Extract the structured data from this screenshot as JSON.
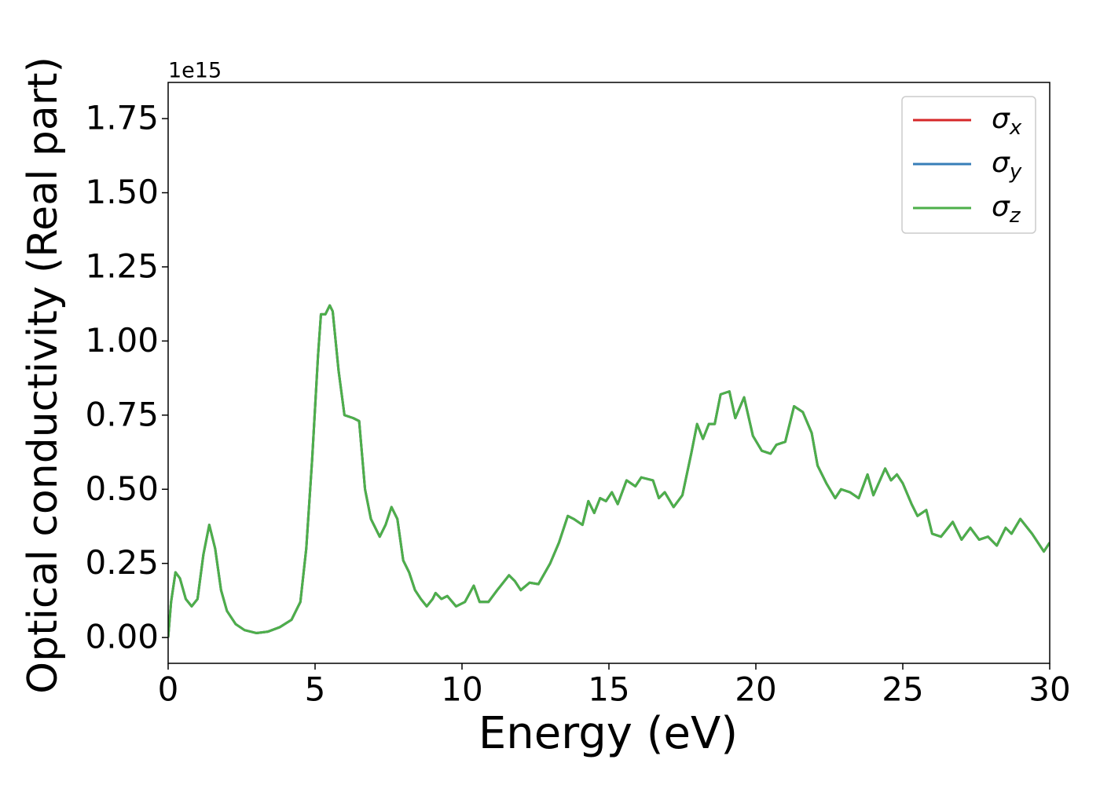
{
  "chart_data": {
    "type": "line",
    "xlabel": "Energy (eV)",
    "ylabel": "Optical conductivity (Real part)",
    "offset_label": "1e15",
    "xlim": [
      0,
      30
    ],
    "xticks": [
      0,
      5,
      10,
      15,
      20,
      25,
      30
    ],
    "ylim": [
      -0.087,
      1.872
    ],
    "yticks": [
      {
        "value": 0,
        "label": "0.00"
      },
      0.25,
      {
        "value": 0.5,
        "label": "0.50"
      },
      0.75,
      {
        "value": 1,
        "label": "1.00"
      },
      1.25,
      {
        "value": 1.5,
        "label": "1.50"
      },
      1.75
    ],
    "legend": "upper right",
    "x": [
      0,
      0.1,
      0.25,
      0.4,
      0.6,
      0.8,
      1.0,
      1.2,
      1.4,
      1.6,
      1.8,
      2.0,
      2.3,
      2.6,
      3.0,
      3.4,
      3.8,
      4.2,
      4.5,
      4.7,
      4.9,
      5.1,
      5.2,
      5.35,
      5.5,
      5.6,
      5.8,
      6.0,
      6.3,
      6.5,
      6.7,
      6.9,
      7.2,
      7.4,
      7.6,
      7.8,
      8.0,
      8.2,
      8.4,
      8.6,
      8.8,
      9.0,
      9.1,
      9.3,
      9.5,
      9.8,
      10.1,
      10.4,
      10.6,
      10.9,
      11.2,
      11.6,
      11.8,
      12.0,
      12.3,
      12.6,
      13.0,
      13.3,
      13.6,
      13.8,
      14.1,
      14.3,
      14.5,
      14.7,
      14.9,
      15.1,
      15.3,
      15.6,
      15.9,
      16.1,
      16.5,
      16.7,
      16.9,
      17.2,
      17.5,
      17.8,
      18.0,
      18.2,
      18.4,
      18.6,
      18.8,
      19.1,
      19.3,
      19.6,
      19.9,
      20.2,
      20.5,
      20.7,
      21.0,
      21.3,
      21.6,
      21.9,
      22.1,
      22.4,
      22.7,
      22.9,
      23.2,
      23.5,
      23.8,
      24.0,
      24.4,
      24.6,
      24.8,
      25.0,
      25.3,
      25.5,
      25.8,
      26.0,
      26.3,
      26.7,
      27.0,
      27.3,
      27.6,
      27.9,
      28.2,
      28.5,
      28.7,
      29.0,
      29.4,
      29.8,
      30.0
    ],
    "series": [
      {
        "name": "σx",
        "color": "#d62728",
        "values": [
          0,
          0.12,
          0.22,
          0.2,
          0.13,
          0.105,
          0.13,
          0.28,
          0.38,
          0.3,
          0.16,
          0.09,
          0.045,
          0.025,
          0.015,
          0.02,
          0.035,
          0.06,
          0.12,
          0.3,
          0.6,
          0.95,
          1.09,
          1.09,
          1.12,
          1.1,
          0.9,
          0.75,
          0.74,
          0.73,
          0.5,
          0.4,
          0.34,
          0.38,
          0.44,
          0.4,
          0.26,
          0.22,
          0.16,
          0.13,
          0.105,
          0.13,
          0.15,
          0.13,
          0.14,
          0.105,
          0.12,
          0.175,
          0.12,
          0.12,
          0.16,
          0.21,
          0.19,
          0.16,
          0.185,
          0.18,
          0.25,
          0.32,
          0.41,
          0.4,
          0.38,
          0.46,
          0.42,
          0.47,
          0.46,
          0.49,
          0.45,
          0.53,
          0.51,
          0.54,
          0.53,
          0.47,
          0.49,
          0.44,
          0.48,
          0.62,
          0.72,
          0.67,
          0.72,
          0.72,
          0.82,
          0.83,
          0.74,
          0.81,
          0.68,
          0.63,
          0.62,
          0.65,
          0.66,
          0.78,
          0.76,
          0.69,
          0.58,
          0.52,
          0.47,
          0.5,
          0.49,
          0.47,
          0.55,
          0.48,
          0.57,
          0.53,
          0.55,
          0.52,
          0.45,
          0.41,
          0.43,
          0.35,
          0.34,
          0.39,
          0.33,
          0.37,
          0.33,
          0.34,
          0.31,
          0.37,
          0.35,
          0.4,
          0.35,
          0.29,
          0.32
        ]
      },
      {
        "name": "σy",
        "color": "#377eb8",
        "values": [
          0,
          0.12,
          0.22,
          0.2,
          0.13,
          0.105,
          0.13,
          0.28,
          0.38,
          0.3,
          0.16,
          0.09,
          0.045,
          0.025,
          0.015,
          0.02,
          0.035,
          0.06,
          0.12,
          0.3,
          0.6,
          0.95,
          1.09,
          1.09,
          1.12,
          1.1,
          0.9,
          0.75,
          0.74,
          0.73,
          0.5,
          0.4,
          0.34,
          0.38,
          0.44,
          0.4,
          0.26,
          0.22,
          0.16,
          0.13,
          0.105,
          0.13,
          0.15,
          0.13,
          0.14,
          0.105,
          0.12,
          0.175,
          0.12,
          0.12,
          0.16,
          0.21,
          0.19,
          0.16,
          0.185,
          0.18,
          0.25,
          0.32,
          0.41,
          0.4,
          0.38,
          0.46,
          0.42,
          0.47,
          0.46,
          0.49,
          0.45,
          0.53,
          0.51,
          0.54,
          0.53,
          0.47,
          0.49,
          0.44,
          0.48,
          0.62,
          0.72,
          0.67,
          0.72,
          0.72,
          0.82,
          0.83,
          0.74,
          0.81,
          0.68,
          0.63,
          0.62,
          0.65,
          0.66,
          0.78,
          0.76,
          0.69,
          0.58,
          0.52,
          0.47,
          0.5,
          0.49,
          0.47,
          0.55,
          0.48,
          0.57,
          0.53,
          0.55,
          0.52,
          0.45,
          0.41,
          0.43,
          0.35,
          0.34,
          0.39,
          0.33,
          0.37,
          0.33,
          0.34,
          0.31,
          0.37,
          0.35,
          0.4,
          0.35,
          0.29,
          0.32
        ]
      },
      {
        "name": "σz",
        "color": "#4daf4a",
        "values": [
          0,
          0.12,
          0.22,
          0.2,
          0.13,
          0.105,
          0.13,
          0.28,
          0.38,
          0.3,
          0.16,
          0.09,
          0.045,
          0.025,
          0.015,
          0.02,
          0.035,
          0.06,
          0.12,
          0.3,
          0.6,
          0.95,
          1.09,
          1.09,
          1.12,
          1.1,
          0.9,
          0.75,
          0.74,
          0.73,
          0.5,
          0.4,
          0.34,
          0.38,
          0.44,
          0.4,
          0.26,
          0.22,
          0.16,
          0.13,
          0.105,
          0.13,
          0.15,
          0.13,
          0.14,
          0.105,
          0.12,
          0.175,
          0.12,
          0.12,
          0.16,
          0.21,
          0.19,
          0.16,
          0.185,
          0.18,
          0.25,
          0.32,
          0.41,
          0.4,
          0.38,
          0.46,
          0.42,
          0.47,
          0.46,
          0.49,
          0.45,
          0.53,
          0.51,
          0.54,
          0.53,
          0.47,
          0.49,
          0.44,
          0.48,
          0.62,
          0.72,
          0.67,
          0.72,
          0.72,
          0.82,
          0.83,
          0.74,
          0.81,
          0.68,
          0.63,
          0.62,
          0.65,
          0.66,
          0.78,
          0.76,
          0.69,
          0.58,
          0.52,
          0.47,
          0.5,
          0.49,
          0.47,
          0.55,
          0.48,
          0.57,
          0.53,
          0.55,
          0.52,
          0.45,
          0.41,
          0.43,
          0.35,
          0.34,
          0.39,
          0.33,
          0.37,
          0.33,
          0.34,
          0.31,
          0.37,
          0.35,
          0.4,
          0.35,
          0.29,
          0.32
        ]
      }
    ]
  }
}
